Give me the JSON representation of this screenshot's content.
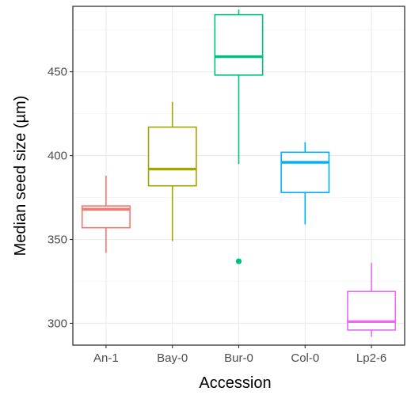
{
  "chart_data": {
    "type": "boxplot",
    "title": "",
    "xlabel": "Accession",
    "ylabel": "Median seed size (µm)",
    "ylim": [
      287,
      489
    ],
    "yticks": [
      300,
      350,
      400,
      450
    ],
    "grid": true,
    "legend": "none",
    "categories": [
      "An-1",
      "Bay-0",
      "Bur-0",
      "Col-0",
      "Lp2-6"
    ],
    "series": [
      {
        "category": "An-1",
        "color": "#f8766d",
        "min": 342,
        "q1": 357,
        "median": 368,
        "q3": 370,
        "max": 388,
        "outliers": []
      },
      {
        "category": "Bay-0",
        "color": "#a3a500",
        "min": 349,
        "q1": 382,
        "median": 392,
        "q3": 417,
        "max": 432,
        "outliers": []
      },
      {
        "category": "Bur-0",
        "color": "#00bf7d",
        "min": 395,
        "q1": 448,
        "median": 459,
        "q3": 484,
        "max": 487,
        "outliers": [
          337
        ]
      },
      {
        "category": "Col-0",
        "color": "#00b0f6",
        "min": 359,
        "q1": 378,
        "median": 396,
        "q3": 402,
        "max": 408,
        "outliers": []
      },
      {
        "category": "Lp2-6",
        "color": "#e76bf3",
        "min": 292,
        "q1": 296,
        "median": 301,
        "q3": 319,
        "max": 336,
        "outliers": []
      }
    ]
  }
}
